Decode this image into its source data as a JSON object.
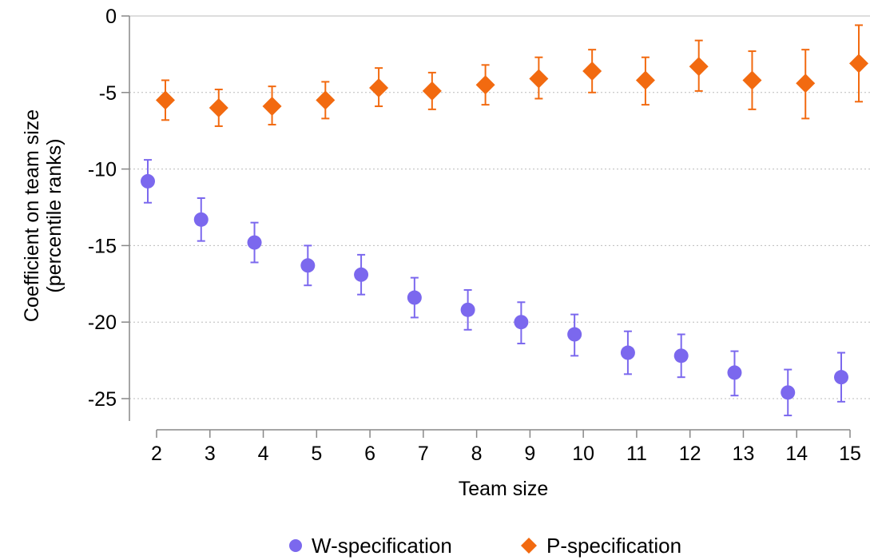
{
  "chart_data": {
    "type": "scatter",
    "title": "",
    "xlabel": "Team size",
    "ylabel": [
      "Coefficient on team size",
      "(percentile ranks)"
    ],
    "x_ticks": [
      2,
      3,
      4,
      5,
      6,
      7,
      8,
      9,
      10,
      11,
      12,
      13,
      14,
      15
    ],
    "y_ticks": [
      0,
      -5,
      -10,
      -15,
      -20,
      -25
    ],
    "xlim": [
      1.85,
      15.1
    ],
    "ylim": [
      -27.4,
      0
    ],
    "grid": "horizontal dotted",
    "legend_position": "bottom",
    "series": [
      {
        "name": "W-specification",
        "marker": "circle",
        "color": "#7B68EE",
        "x": [
          2,
          3,
          4,
          5,
          6,
          7,
          8,
          9,
          10,
          11,
          12,
          13,
          14,
          15
        ],
        "y": [
          -10.8,
          -13.3,
          -14.8,
          -16.3,
          -16.9,
          -18.4,
          -19.2,
          -20.0,
          -20.8,
          -22.0,
          -22.2,
          -23.3,
          -24.6,
          -23.6
        ],
        "err_low": [
          -12.2,
          -14.7,
          -16.1,
          -17.6,
          -18.2,
          -19.7,
          -20.5,
          -21.4,
          -22.2,
          -23.4,
          -23.6,
          -24.8,
          -26.1,
          -25.2
        ],
        "err_high": [
          -9.4,
          -11.9,
          -13.5,
          -15.0,
          -15.6,
          -17.1,
          -17.9,
          -18.7,
          -19.5,
          -20.6,
          -20.8,
          -21.9,
          -23.1,
          -22.0
        ]
      },
      {
        "name": "P-specification",
        "marker": "diamond",
        "color": "#F26A10",
        "x": [
          2,
          3,
          4,
          5,
          6,
          7,
          8,
          9,
          10,
          11,
          12,
          13,
          14,
          15
        ],
        "y": [
          -5.5,
          -6.0,
          -5.9,
          -5.5,
          -4.7,
          -4.9,
          -4.5,
          -4.1,
          -3.6,
          -4.2,
          -3.3,
          -4.2,
          -4.4,
          -3.1
        ],
        "err_low": [
          -6.8,
          -7.2,
          -7.1,
          -6.7,
          -5.9,
          -6.1,
          -5.8,
          -5.4,
          -5.0,
          -5.8,
          -4.9,
          -6.1,
          -6.7,
          -5.6
        ],
        "err_high": [
          -4.2,
          -4.8,
          -4.6,
          -4.3,
          -3.4,
          -3.7,
          -3.2,
          -2.7,
          -2.2,
          -2.7,
          -1.6,
          -2.3,
          -2.2,
          -0.6
        ]
      }
    ]
  },
  "colors": {
    "axis": "#888888",
    "grid": "#BBBBBB"
  }
}
